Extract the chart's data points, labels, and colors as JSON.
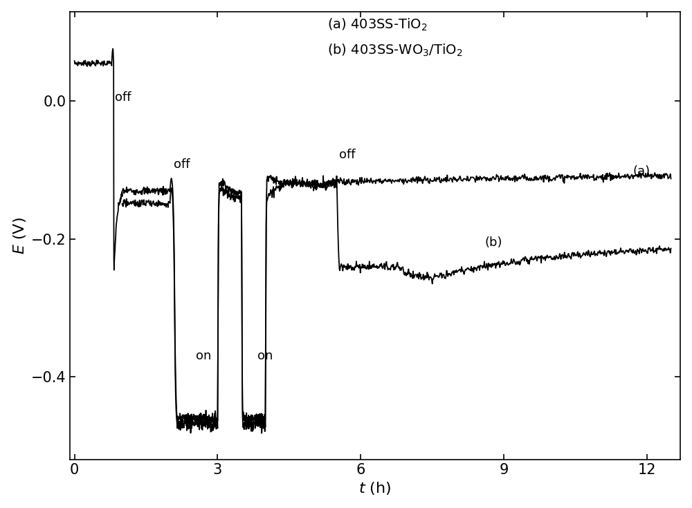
{
  "xlabel": "t (h)",
  "ylabel": "E (V)",
  "xlim": [
    -0.1,
    12.7
  ],
  "ylim": [
    -0.52,
    0.13
  ],
  "xticks": [
    0,
    3,
    6,
    9,
    12
  ],
  "yticks": [
    0.0,
    -0.2,
    -0.4
  ],
  "label_a": "(a)",
  "label_b": "(b)",
  "legend_line1": "(a) 403SS-TiO$_2$",
  "legend_line2": "(b) 403SS-WO$_3$/TiO$_2$",
  "bgcolor": "#ffffff",
  "linecolor": "#000000",
  "linewidth": 1.3
}
